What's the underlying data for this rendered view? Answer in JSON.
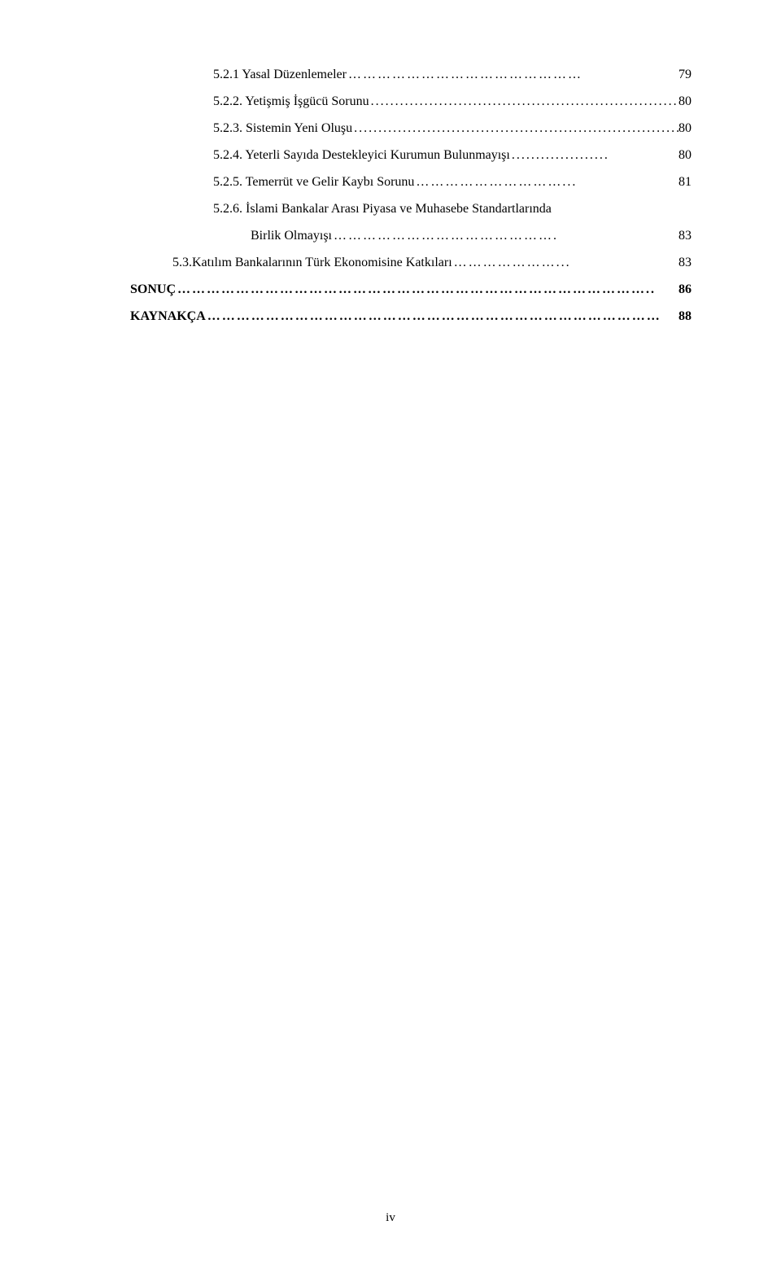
{
  "toc": {
    "entries": [
      {
        "label": "5.2.1 Yasal Düzenlemeler",
        "page": "79",
        "indent": "indent-2",
        "bold": false
      },
      {
        "label": "5.2.2. Yetişmiş İşgücü Sorunu",
        "page": "80",
        "indent": "indent-2",
        "bold": false
      },
      {
        "label": "5.2.3. Sistemin Yeni Oluşu",
        "page": "80",
        "indent": "indent-2",
        "bold": false
      },
      {
        "label": "5.2.4. Yeterli Sayıda Destekleyici Kurumun Bulunmayışı",
        "page": "80",
        "indent": "indent-2",
        "bold": false
      },
      {
        "label": "5.2.5. Temerrüt ve Gelir Kaybı Sorunu",
        "page": "81",
        "indent": "indent-2",
        "bold": false
      },
      {
        "label": "5.2.6. İslami Bankalar Arası Piyasa ve Muhasebe Standartlarında",
        "page": "",
        "indent": "indent-2",
        "bold": false,
        "continuation": true
      },
      {
        "label": "Birlik Olmayışı",
        "page": "83",
        "indent": "indent-3",
        "bold": false
      },
      {
        "label": "5.3.Katılım Bankalarının Türk Ekonomisine Katkıları",
        "page": "83",
        "indent": "indent-1",
        "bold": false
      },
      {
        "label": "SONUÇ",
        "page": "86",
        "indent": "",
        "bold": true
      },
      {
        "label": "KAYNAKÇA",
        "page": "88",
        "indent": "",
        "bold": true
      }
    ]
  },
  "footer": {
    "pageNumber": "iv"
  },
  "style": {
    "backgroundColor": "#ffffff",
    "textColor": "#000000",
    "fontFamily": "Times New Roman",
    "fontSize": 16
  }
}
